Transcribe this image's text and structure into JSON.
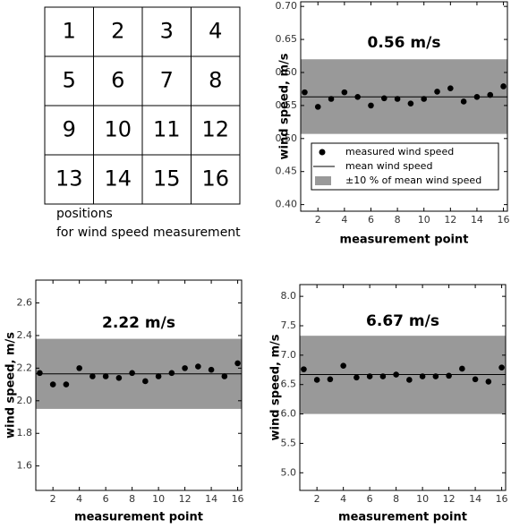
{
  "position_grid": {
    "cells": [
      "1",
      "2",
      "3",
      "4",
      "5",
      "6",
      "7",
      "8",
      "9",
      "10",
      "11",
      "12",
      "13",
      "14",
      "15",
      "16"
    ],
    "caption": [
      "positions",
      "for wind speed measurement"
    ]
  },
  "chart_data": [
    {
      "type": "scatter",
      "title": "0.56 m/s",
      "y_label": "wind speed, m/s",
      "x_label": "measurement point",
      "x": [
        1,
        2,
        3,
        4,
        5,
        6,
        7,
        8,
        9,
        10,
        11,
        12,
        13,
        14,
        15,
        16
      ],
      "series": [
        {
          "name": "measured wind speed",
          "color": "#000000",
          "values": [
            0.57,
            0.548,
            0.56,
            0.57,
            0.563,
            0.55,
            0.561,
            0.56,
            0.553,
            0.56,
            0.571,
            0.576,
            0.556,
            0.563,
            0.566,
            0.579
          ]
        }
      ],
      "mean_line": {
        "name": "mean wind speed",
        "value": 0.563,
        "color": "#000000"
      },
      "band": {
        "name": "±10 % of mean wind speed",
        "lower": 0.507,
        "upper": 0.62,
        "color": "#999999"
      },
      "xlim": [
        0.7,
        16.3
      ],
      "xticks": [
        2,
        4,
        6,
        8,
        10,
        12,
        14,
        16
      ],
      "ylim": [
        0.39,
        0.707
      ],
      "yticks": [
        {
          "value": 0.4,
          "label": "0.40"
        },
        {
          "value": 0.45,
          "label": "0.45"
        },
        {
          "value": 0.5,
          "label": "0.50"
        },
        {
          "value": 0.55,
          "label": "0.55"
        },
        {
          "value": 0.6,
          "label": "0.60"
        },
        {
          "value": 0.65,
          "label": "0.65"
        },
        {
          "value": 0.7,
          "label": "0.70"
        }
      ]
    },
    {
      "type": "scatter",
      "title": "2.22 m/s",
      "y_label": "wind speed, m/s",
      "x_label": "measurement point",
      "x": [
        1,
        2,
        3,
        4,
        5,
        6,
        7,
        8,
        9,
        10,
        11,
        12,
        13,
        14,
        15,
        16
      ],
      "series": [
        {
          "color": "#000000",
          "values": [
            2.17,
            2.1,
            2.1,
            2.2,
            2.15,
            2.15,
            2.14,
            2.17,
            2.12,
            2.15,
            2.17,
            2.2,
            2.21,
            2.19,
            2.15,
            2.23
          ]
        }
      ],
      "mean_line": {
        "value": 2.165,
        "color": "#000000"
      },
      "band": {
        "lower": 1.95,
        "upper": 2.38,
        "color": "#999999"
      },
      "xlim": [
        0.7,
        16.3
      ],
      "xticks": [
        2,
        4,
        6,
        8,
        10,
        12,
        14,
        16
      ],
      "ylim": [
        1.45,
        2.74
      ],
      "yticks": [
        1.6,
        1.8,
        {
          "value": 2.0,
          "label": "2.0"
        },
        2.2,
        2.4,
        2.6
      ]
    },
    {
      "type": "scatter",
      "title": "6.67 m/s",
      "y_label": "wind speed, m/s",
      "x_label": "measurement point",
      "x": [
        1,
        2,
        3,
        4,
        5,
        6,
        7,
        8,
        9,
        10,
        11,
        12,
        13,
        14,
        15,
        16
      ],
      "series": [
        {
          "color": "#000000",
          "values": [
            6.76,
            6.58,
            6.59,
            6.82,
            6.62,
            6.64,
            6.64,
            6.67,
            6.58,
            6.64,
            6.64,
            6.65,
            6.77,
            6.59,
            6.55,
            6.79
          ]
        }
      ],
      "mean_line": {
        "value": 6.67,
        "color": "#000000"
      },
      "band": {
        "lower": 6.0,
        "upper": 7.33,
        "color": "#999999"
      },
      "xlim": [
        0.7,
        16.3
      ],
      "xticks": [
        2,
        4,
        6,
        8,
        10,
        12,
        14,
        16
      ],
      "ylim": [
        4.7,
        8.2
      ],
      "yticks": [
        {
          "value": 5.0,
          "label": "5.0"
        },
        5.5,
        {
          "value": 6.0,
          "label": "6.0"
        },
        6.5,
        {
          "value": 7.0,
          "label": "7.0"
        },
        7.5,
        {
          "value": 8.0,
          "label": "8.0"
        }
      ]
    }
  ]
}
